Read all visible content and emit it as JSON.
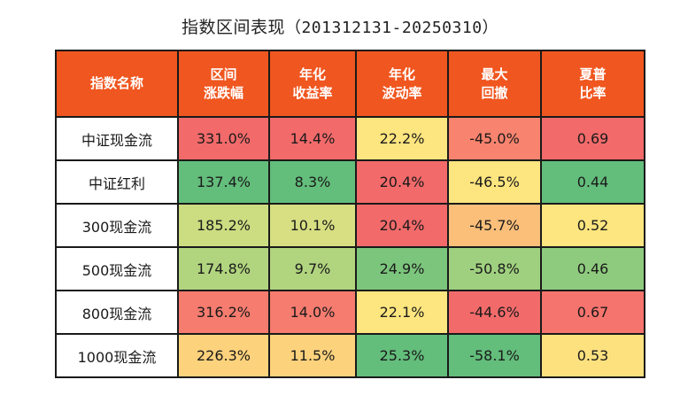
{
  "title": {
    "main": "指数区间表现",
    "range": "（201312131-20250310）"
  },
  "table": {
    "headers": [
      {
        "line1": "指数名称",
        "line2": ""
      },
      {
        "line1": "区间",
        "line2": "涨跌幅"
      },
      {
        "line1": "年化",
        "line2": "收益率"
      },
      {
        "line1": "年化",
        "line2": "波动率"
      },
      {
        "line1": "最大",
        "line2": "回撤"
      },
      {
        "line1": "夏普",
        "line2": "比率"
      }
    ],
    "rows": [
      {
        "name": "中证现金流",
        "cells": [
          {
            "value": "331.0%",
            "color": "#f26a6a"
          },
          {
            "value": "14.4%",
            "color": "#f26a6a"
          },
          {
            "value": "22.2%",
            "color": "#fde57f"
          },
          {
            "value": "-45.0%",
            "color": "#f8836e"
          },
          {
            "value": "0.69",
            "color": "#f26a6a"
          }
        ]
      },
      {
        "name": "中证红利",
        "cells": [
          {
            "value": "137.4%",
            "color": "#63bd7b"
          },
          {
            "value": "8.3%",
            "color": "#63bd7b"
          },
          {
            "value": "20.4%",
            "color": "#f26a6a"
          },
          {
            "value": "-46.5%",
            "color": "#fde57f"
          },
          {
            "value": "0.44",
            "color": "#63bd7b"
          }
        ]
      },
      {
        "name": "300现金流",
        "cells": [
          {
            "value": "185.2%",
            "color": "#cbdc81"
          },
          {
            "value": "10.1%",
            "color": "#d7df82"
          },
          {
            "value": "20.4%",
            "color": "#f26a6a"
          },
          {
            "value": "-45.7%",
            "color": "#fbbf7a"
          },
          {
            "value": "0.52",
            "color": "#fde57f"
          }
        ]
      },
      {
        "name": "500现金流",
        "cells": [
          {
            "value": "174.8%",
            "color": "#b1d47f"
          },
          {
            "value": "9.7%",
            "color": "#b1d47f"
          },
          {
            "value": "24.9%",
            "color": "#7cc57d"
          },
          {
            "value": "-50.8%",
            "color": "#9fd07f"
          },
          {
            "value": "0.46",
            "color": "#8fcb7e"
          }
        ]
      },
      {
        "name": "800现金流",
        "cells": [
          {
            "value": "316.2%",
            "color": "#f57c6f"
          },
          {
            "value": "14.0%",
            "color": "#f57c6f"
          },
          {
            "value": "22.1%",
            "color": "#fde57f"
          },
          {
            "value": "-44.6%",
            "color": "#f26a6a"
          },
          {
            "value": "0.67",
            "color": "#f5746d"
          }
        ]
      },
      {
        "name": "1000现金流",
        "cells": [
          {
            "value": "226.3%",
            "color": "#fdd27c"
          },
          {
            "value": "11.5%",
            "color": "#fdd27c"
          },
          {
            "value": "25.3%",
            "color": "#63bd7b"
          },
          {
            "value": "-58.1%",
            "color": "#63bd7b"
          },
          {
            "value": "0.53",
            "color": "#fee17f"
          }
        ]
      }
    ]
  }
}
